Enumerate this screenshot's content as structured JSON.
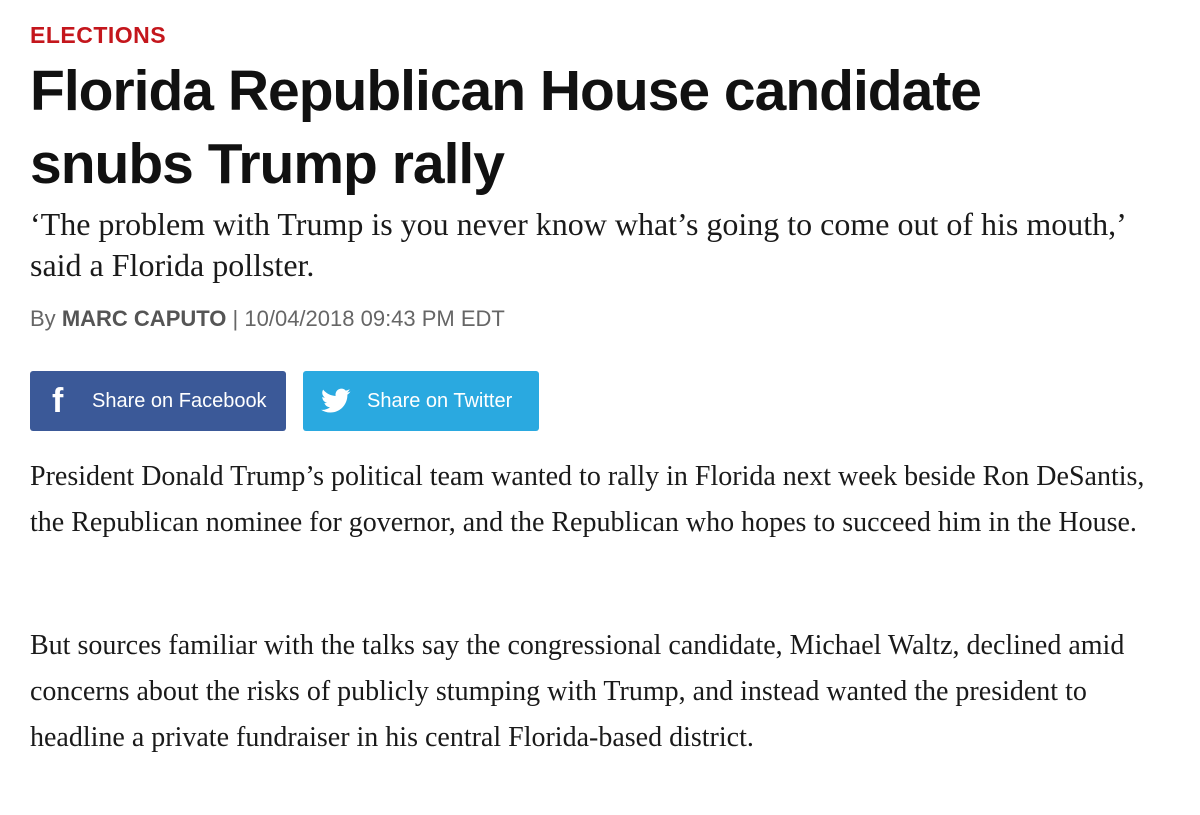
{
  "article": {
    "category": "ELECTIONS",
    "headline": "Florida Republican House candidate snubs Trump rally",
    "dek": "‘The problem with Trump is you never know what’s going to come out of his mouth,’ said a Florida pollster.",
    "byline": {
      "prefix": "By",
      "author": "MARC CAPUTO",
      "separator": "|",
      "timestamp": "10/04/2018 09:43 PM EDT"
    },
    "share": {
      "facebook_label": "Share on Facebook",
      "twitter_label": "Share on Twitter",
      "facebook_icon": "facebook-icon",
      "twitter_icon": "twitter-bird-icon",
      "facebook_color": "#3b5998",
      "twitter_color": "#2aa9e0"
    },
    "paragraphs": [
      "President Donald Trump’s political team wanted to rally in Florida next week beside Ron DeSantis, the Republican nominee for governor, and the Republican who hopes to succeed him in the House.",
      "But sources familiar with the talks say the congressional candidate, Michael Waltz, declined amid concerns about the risks of publicly stumping with Trump, and instead wanted the president to headline a private fundraiser in his central Florida-based district."
    ]
  },
  "colors": {
    "category_red": "#c4161c",
    "headline_text": "#111111",
    "byline_gray": "#666666"
  }
}
